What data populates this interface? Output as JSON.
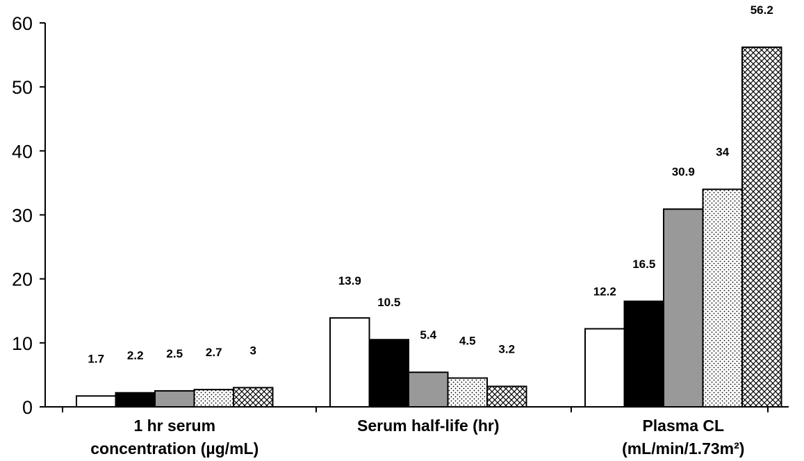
{
  "chart_data": {
    "type": "bar",
    "title": "",
    "xlabel": "",
    "ylabel": "",
    "ylim": [
      0,
      60
    ],
    "yticks": [
      0,
      10,
      20,
      30,
      40,
      50,
      60
    ],
    "grid": false,
    "categories": [
      [
        "1 hr serum",
        "concentration (µg/mL)"
      ],
      [
        "Serum half-life (hr)"
      ],
      [
        "Plasma CL",
        "(mL/min/1.73m²)"
      ]
    ],
    "series": [
      {
        "fill": "white",
        "values": [
          1.7,
          13.9,
          12.2
        ],
        "labels": [
          "1.7",
          "13.9",
          "12.2"
        ]
      },
      {
        "fill": "black",
        "values": [
          2.2,
          10.5,
          16.5
        ],
        "labels": [
          "2.2",
          "10.5",
          "16.5"
        ]
      },
      {
        "fill": "gray",
        "values": [
          2.5,
          5.4,
          30.9
        ],
        "labels": [
          "2.5",
          "5.4",
          "30.9"
        ]
      },
      {
        "fill": "dotted",
        "values": [
          2.7,
          4.5,
          34
        ],
        "labels": [
          "2.7",
          "4.5",
          "34"
        ]
      },
      {
        "fill": "crosshatch",
        "values": [
          3,
          3.2,
          56.2
        ],
        "labels": [
          "3",
          "3.2",
          "56.2"
        ]
      }
    ],
    "colors": {
      "gray": "#999999",
      "black": "#000000",
      "white": "#ffffff"
    }
  }
}
